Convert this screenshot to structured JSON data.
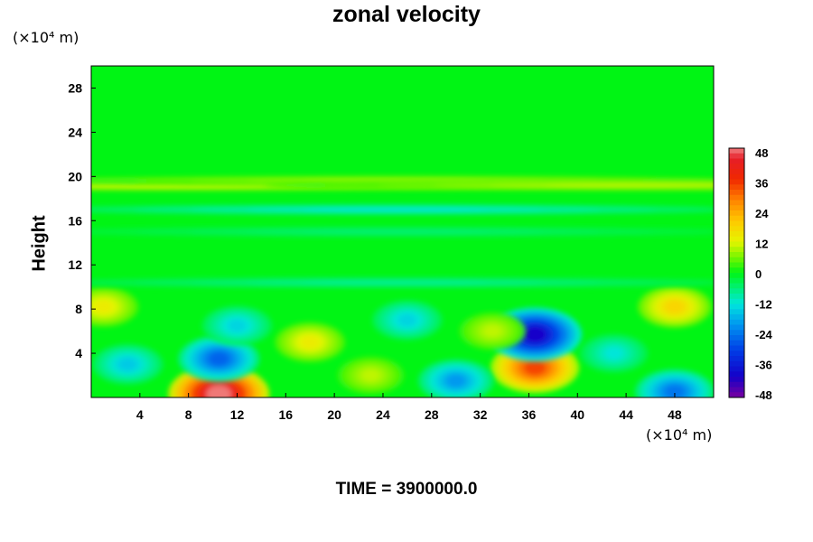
{
  "chart_data": {
    "type": "heatmap",
    "title": "zonal velocity",
    "ylabel": "Height",
    "xlabel": "",
    "x_unit": "(×10⁴ m)",
    "y_unit": "(×10⁴ m)",
    "footer": "TIME = 3900000.0",
    "xlim": [
      0,
      51.2
    ],
    "ylim": [
      0,
      30
    ],
    "x_ticks": [
      4,
      8,
      12,
      16,
      20,
      24,
      28,
      32,
      36,
      40,
      44,
      48
    ],
    "y_ticks": [
      4,
      8,
      12,
      16,
      20,
      24,
      28
    ],
    "colorbar": {
      "min": -48,
      "max": 48,
      "ticks": [
        48,
        36,
        24,
        12,
        0,
        -12,
        -24,
        -36,
        -48
      ]
    },
    "background_level": 0,
    "features": [
      {
        "x": 10.5,
        "y": 0.3,
        "value": 48,
        "kind": "jet"
      },
      {
        "x": 36.5,
        "y": 2.7,
        "value": 34,
        "kind": "jet"
      },
      {
        "x": 36.5,
        "y": 5.7,
        "value": -40,
        "kind": "jet"
      },
      {
        "x": 30,
        "y": 1.5,
        "value": -20,
        "kind": "jet"
      },
      {
        "x": 10.5,
        "y": 3.5,
        "value": -26,
        "kind": "jet"
      },
      {
        "x": 48,
        "y": 0.5,
        "value": -24,
        "kind": "jet"
      },
      {
        "x": 3,
        "y": 3,
        "value": -15,
        "kind": "jet"
      },
      {
        "x": 18,
        "y": 5,
        "value": 14,
        "kind": "jet"
      },
      {
        "x": 23,
        "y": 2,
        "value": 10,
        "kind": "jet"
      },
      {
        "x": 12,
        "y": 6.5,
        "value": -14,
        "kind": "jet"
      },
      {
        "x": 26,
        "y": 7,
        "value": -14,
        "kind": "jet"
      },
      {
        "x": 33,
        "y": 6,
        "value": 10,
        "kind": "jet"
      },
      {
        "x": 43,
        "y": 4,
        "value": -12,
        "kind": "jet"
      },
      {
        "x": 48,
        "y": 8.2,
        "value": 18,
        "kind": "jet"
      },
      {
        "x": 1,
        "y": 8.2,
        "value": 14,
        "kind": "jet"
      },
      {
        "x": 7,
        "y": 19.2,
        "value": 12,
        "kind": "band"
      },
      {
        "x": 25,
        "y": 19.6,
        "value": 8,
        "kind": "band"
      },
      {
        "x": 45,
        "y": 19.2,
        "value": 10,
        "kind": "band"
      },
      {
        "x": 25,
        "y": 17,
        "value": -12,
        "kind": "band"
      },
      {
        "x": 25,
        "y": 15,
        "value": -6,
        "kind": "band"
      },
      {
        "x": 25,
        "y": 10.4,
        "value": -8,
        "kind": "band"
      }
    ]
  }
}
